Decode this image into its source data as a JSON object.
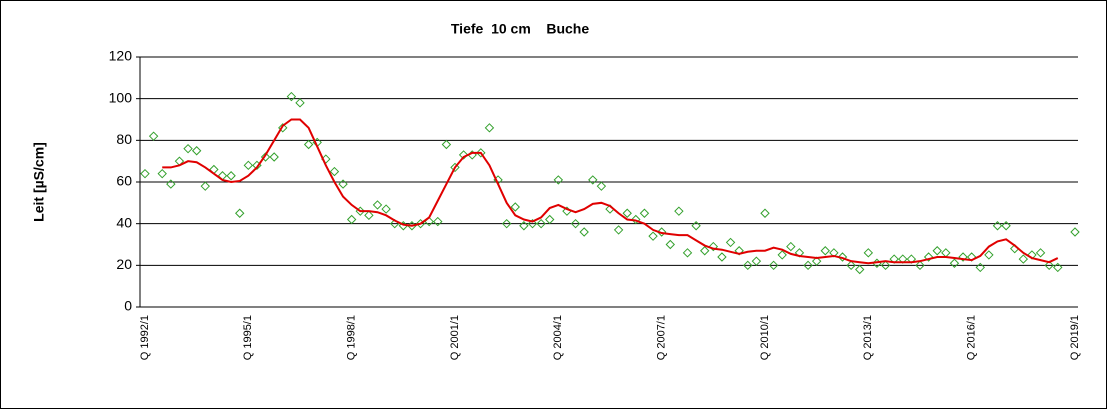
{
  "chart_data": {
    "type": "line",
    "title": "Tiefe  10 cm    Buche",
    "y_label": "Leit [µS/cm]",
    "categories": [
      "Q 1992/1",
      null,
      null,
      null,
      null,
      null,
      null,
      null,
      null,
      null,
      null,
      null,
      "Q 1995/1",
      null,
      null,
      null,
      null,
      null,
      null,
      null,
      null,
      null,
      null,
      null,
      "Q 1998/1",
      null,
      null,
      null,
      null,
      null,
      null,
      null,
      null,
      null,
      null,
      null,
      "Q 2001/1",
      null,
      null,
      null,
      null,
      null,
      null,
      null,
      null,
      null,
      null,
      null,
      "Q 2004/1",
      null,
      null,
      null,
      null,
      null,
      null,
      null,
      null,
      null,
      null,
      null,
      "Q 2007/1",
      null,
      null,
      null,
      null,
      null,
      null,
      null,
      null,
      null,
      null,
      null,
      "Q 2010/1",
      null,
      null,
      null,
      null,
      null,
      null,
      null,
      null,
      null,
      null,
      null,
      "Q 2013/1",
      null,
      null,
      null,
      null,
      null,
      null,
      null,
      null,
      null,
      null,
      null,
      "Q 2016/1",
      null,
      null,
      null,
      null,
      null,
      null,
      null,
      null,
      null,
      null,
      null,
      "Q 2019/1"
    ],
    "series": [
      {
        "color": "#33a02c",
        "mode": "markers",
        "values": [
          64,
          82,
          64,
          59,
          70,
          76,
          75,
          58,
          66,
          63,
          63,
          45,
          68,
          68,
          72,
          72,
          86,
          101,
          98,
          78,
          79,
          71,
          65,
          59,
          42,
          46,
          44,
          49,
          47,
          40,
          39,
          39,
          40,
          41,
          41,
          78,
          67,
          73,
          73,
          74,
          86,
          61,
          40,
          48,
          39,
          40,
          40,
          42,
          61,
          46,
          40,
          36,
          61,
          58,
          47,
          37,
          45,
          42,
          45,
          34,
          36,
          30,
          46,
          26,
          39,
          27,
          29,
          24,
          31,
          27,
          20,
          22,
          45,
          20,
          25,
          29,
          26,
          20,
          22,
          27,
          26,
          24,
          20,
          18,
          26,
          21,
          20,
          23,
          23,
          23,
          20,
          24,
          27,
          26,
          21,
          24,
          24,
          19,
          25,
          39,
          39,
          28,
          23,
          25,
          26,
          20,
          19,
          null,
          36
        ]
      },
      {
        "color": "#e00000",
        "mode": "line",
        "values": [
          null,
          null,
          67,
          67,
          68,
          70,
          69.5,
          67,
          64,
          61,
          60,
          60.5,
          63,
          67,
          73,
          80,
          87,
          90,
          90,
          86,
          77,
          68,
          60,
          53,
          49,
          46,
          46,
          45.5,
          44,
          41.5,
          39.5,
          39,
          40,
          43,
          51,
          59,
          67,
          72,
          74,
          74,
          68,
          59,
          50,
          44,
          42,
          41,
          43,
          47.5,
          49,
          47,
          45.5,
          47,
          49.5,
          50,
          48.5,
          45,
          42,
          41.5,
          40,
          37,
          35.5,
          35,
          34.5,
          34.5,
          32,
          29.5,
          28,
          27.5,
          26.5,
          25.5,
          26.5,
          27,
          27,
          28.5,
          27.5,
          25.5,
          24.5,
          24,
          23.5,
          24,
          24.5,
          23.5,
          22,
          21.5,
          21,
          21.5,
          22,
          21.5,
          21.5,
          21.5,
          22,
          23,
          24,
          24,
          23.5,
          23,
          22.5,
          24.5,
          29,
          31.5,
          32.5,
          29.5,
          26,
          23.5,
          22.5,
          21.5,
          23.5,
          null,
          null
        ]
      }
    ],
    "ylim": [
      0,
      120
    ],
    "yticks": [
      0,
      20,
      40,
      60,
      80,
      100,
      120
    ],
    "grid": true
  }
}
